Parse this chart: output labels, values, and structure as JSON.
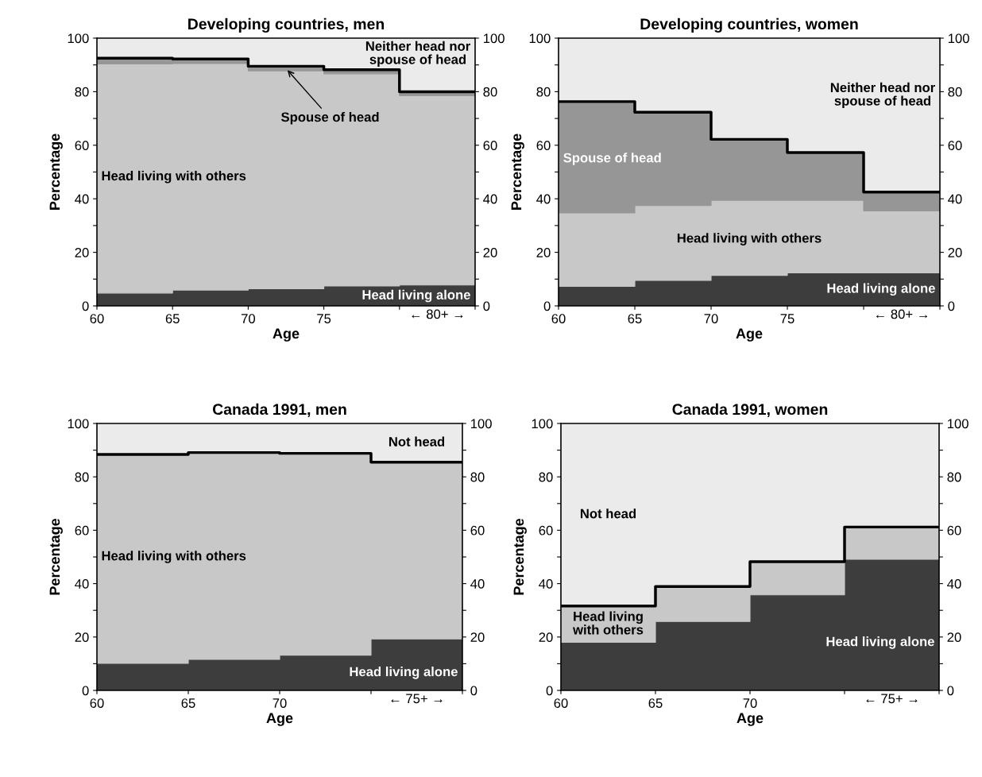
{
  "chart_data": [
    {
      "type": "area",
      "stacked": true,
      "title": "Developing countries, men",
      "xlabel": "Age",
      "ylabel": "Percentage",
      "x": [
        60,
        65,
        70,
        75,
        80,
        85
      ],
      "series": [
        {
          "name": "Head living alone",
          "color": "#3d3d3d",
          "values": [
            4.8,
            5.9,
            6.4,
            7.4,
            7.8,
            7.8
          ]
        },
        {
          "name": "Head living with others",
          "color": "#c8c8c8",
          "values": [
            85.6,
            84.6,
            81.4,
            79.3,
            70.7,
            70.7
          ]
        },
        {
          "name": "Spouse of head",
          "color": "#969696",
          "values": [
            2.1,
            1.7,
            1.7,
            1.5,
            1.5,
            1.5
          ]
        },
        {
          "name": "Neither head nor\nspouse of head",
          "color": "#ebebeb",
          "values": [
            7.5,
            7.8,
            10.5,
            11.8,
            20,
            20
          ]
        },
        {
          "type": "step",
          "color": "#000000",
          "values": [
            92.5,
            92.2,
            89.5,
            88.2,
            80,
            80
          ]
        }
      ],
      "xlim": [
        60,
        85
      ],
      "xticks": [
        60,
        65,
        70,
        75,
        {
          "value": 80,
          "label": null
        },
        {
          "value": 85,
          "label": null
        }
      ],
      "ylim": [
        0,
        100
      ],
      "yticks": [
        0,
        {
          "value": 10,
          "label": null
        },
        20,
        {
          "value": 30,
          "label": null
        },
        40,
        {
          "value": 50,
          "label": null
        },
        60,
        {
          "value": 70,
          "label": null
        },
        80,
        {
          "value": 90,
          "label": null
        },
        100
      ],
      "y2lim": [
        0,
        100
      ],
      "y2ticks": [
        0,
        {
          "value": 10,
          "label": null
        },
        20,
        {
          "value": 30,
          "label": null
        },
        40,
        {
          "value": 50,
          "label": null
        },
        60,
        {
          "value": 70,
          "label": null
        },
        80,
        {
          "value": 90,
          "label": null
        },
        100
      ],
      "annotations": [
        "← 80+ →"
      ]
    },
    {
      "type": "area",
      "stacked": true,
      "title": "Developing countries, women",
      "xlabel": "Age",
      "ylabel": "Percentage",
      "x": [
        60,
        65,
        70,
        75,
        80,
        85
      ],
      "series": [
        {
          "name": "Head living alone",
          "color": "#3d3d3d",
          "values": [
            7.3,
            9.5,
            11.4,
            12.3,
            12.3,
            12.3
          ]
        },
        {
          "name": "Head living with others",
          "color": "#c8c8c8",
          "values": [
            27.4,
            28,
            28,
            27.1,
            23.2,
            23.2
          ]
        },
        {
          "name": "Spouse of head",
          "color": "#969696",
          "values": [
            41.6,
            34.8,
            22.8,
            17.9,
            7,
            7
          ]
        },
        {
          "name": "Neither head nor\nspouse of head",
          "color": "#ebebeb",
          "values": [
            23.7,
            27.7,
            37.8,
            42.7,
            57.5,
            57.5
          ]
        },
        {
          "type": "step",
          "color": "#000000",
          "values": [
            76.3,
            72.3,
            62.2,
            57.3,
            42.5,
            42.5
          ]
        }
      ],
      "xlim": [
        60,
        85
      ],
      "xticks": [
        60,
        65,
        70,
        75,
        {
          "value": 80,
          "label": null
        },
        {
          "value": 85,
          "label": null
        }
      ],
      "ylim": [
        0,
        100
      ],
      "yticks": [
        0,
        {
          "value": 10,
          "label": null
        },
        20,
        {
          "value": 30,
          "label": null
        },
        40,
        {
          "value": 50,
          "label": null
        },
        60,
        {
          "value": 70,
          "label": null
        },
        80,
        {
          "value": 90,
          "label": null
        },
        100
      ],
      "y2lim": [
        0,
        100
      ],
      "y2ticks": [
        0,
        {
          "value": 10,
          "label": null
        },
        20,
        {
          "value": 30,
          "label": null
        },
        40,
        {
          "value": 50,
          "label": null
        },
        60,
        {
          "value": 70,
          "label": null
        },
        80,
        {
          "value": 90,
          "label": null
        },
        100
      ],
      "annotations": [
        "← 80+ →"
      ]
    },
    {
      "type": "area",
      "stacked": true,
      "title": "Canada 1991, men",
      "xlabel": "Age",
      "ylabel": "Percentage",
      "x": [
        60,
        65,
        70,
        75,
        80
      ],
      "series": [
        {
          "name": "Head living alone",
          "color": "#3d3d3d",
          "values": [
            10.1,
            11.6,
            13.2,
            19.3,
            19.3
          ]
        },
        {
          "name": "Head living with others",
          "color": "#c8c8c8",
          "values": [
            78.3,
            77.5,
            75.6,
            66.2,
            66.2
          ]
        },
        {
          "name": "Not head",
          "color": "#ebebeb",
          "values": [
            11.6,
            10.9,
            11.2,
            14.5,
            14.5
          ]
        },
        {
          "type": "step",
          "color": "#000000",
          "values": [
            88.4,
            89.1,
            88.8,
            85.5,
            85.5
          ]
        }
      ],
      "xlim": [
        60,
        80
      ],
      "xticks": [
        60,
        65,
        70,
        {
          "value": 75,
          "label": null
        },
        {
          "value": 80,
          "label": null
        }
      ],
      "ylim": [
        0,
        100
      ],
      "yticks": [
        0,
        {
          "value": 10,
          "label": null
        },
        20,
        {
          "value": 30,
          "label": null
        },
        40,
        {
          "value": 50,
          "label": null
        },
        60,
        {
          "value": 70,
          "label": null
        },
        80,
        {
          "value": 90,
          "label": null
        },
        100
      ],
      "y2lim": [
        0,
        100
      ],
      "y2ticks": [
        0,
        {
          "value": 10,
          "label": null
        },
        20,
        {
          "value": 30,
          "label": null
        },
        40,
        {
          "value": 50,
          "label": null
        },
        60,
        {
          "value": 70,
          "label": null
        },
        80,
        {
          "value": 90,
          "label": null
        },
        100
      ],
      "annotations": [
        "← 75+ →"
      ]
    },
    {
      "type": "area",
      "stacked": true,
      "title": "Canada 1991, women",
      "xlabel": "Age",
      "ylabel": "Percentage",
      "x": [
        60,
        65,
        70,
        75,
        80
      ],
      "series": [
        {
          "name": "Head living alone",
          "color": "#3d3d3d",
          "values": [
            18,
            25.8,
            35.8,
            49.1,
            49.1
          ]
        },
        {
          "name": "Head living\nwith others",
          "color": "#c8c8c8",
          "values": [
            13.6,
            13.1,
            12.4,
            12.1,
            12.1
          ]
        },
        {
          "name": "Not head",
          "color": "#ebebeb",
          "values": [
            68.4,
            61.1,
            51.8,
            38.8,
            38.8
          ]
        },
        {
          "type": "step",
          "color": "#000000",
          "values": [
            31.6,
            38.9,
            48.2,
            61.2,
            61.2
          ]
        }
      ],
      "xlim": [
        60,
        80
      ],
      "xticks": [
        60,
        65,
        70,
        {
          "value": 75,
          "label": null
        },
        {
          "value": 80,
          "label": null
        }
      ],
      "ylim": [
        0,
        100
      ],
      "yticks": [
        0,
        {
          "value": 10,
          "label": null
        },
        20,
        {
          "value": 30,
          "label": null
        },
        40,
        {
          "value": 50,
          "label": null
        },
        60,
        {
          "value": 70,
          "label": null
        },
        80,
        {
          "value": 90,
          "label": null
        },
        100
      ],
      "y2lim": [
        0,
        100
      ],
      "y2ticks": [
        0,
        {
          "value": 10,
          "label": null
        },
        20,
        {
          "value": 30,
          "label": null
        },
        40,
        {
          "value": 50,
          "label": null
        },
        60,
        {
          "value": 70,
          "label": null
        },
        80,
        {
          "value": 90,
          "label": null
        },
        100
      ],
      "annotations": [
        "← 75+ →"
      ]
    }
  ]
}
